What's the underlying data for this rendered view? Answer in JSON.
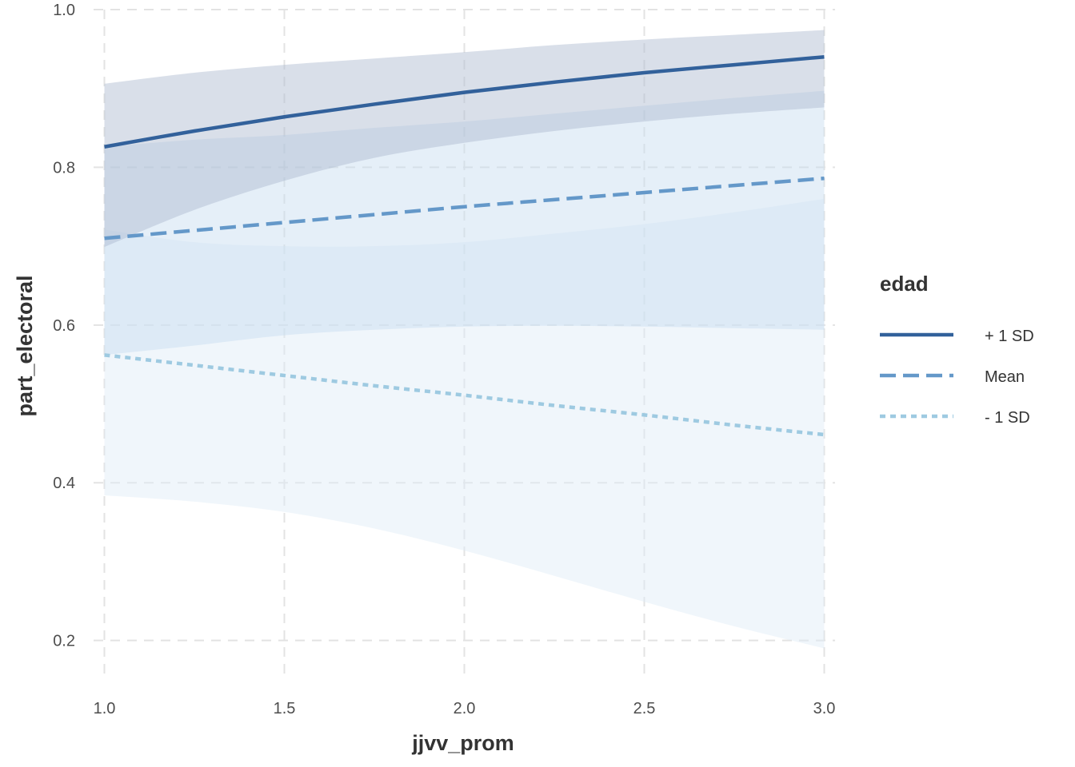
{
  "chart_data": {
    "type": "line",
    "title": "",
    "xlabel": "jjvv_prom",
    "ylabel": "part_electoral",
    "xlim": [
      0.97,
      3.03
    ],
    "ylim": [
      0.15,
      1.0
    ],
    "x_ticks": [
      "1.0",
      "1.5",
      "2.0",
      "2.5",
      "3.0"
    ],
    "y_ticks": [
      "0.2",
      "0.4",
      "0.6",
      "0.8",
      "1.0"
    ],
    "grid": true,
    "legend": {
      "title": "edad",
      "position": "right"
    },
    "x": [
      1.0,
      1.25,
      1.5,
      1.75,
      2.0,
      2.25,
      2.5,
      2.75,
      3.0
    ],
    "series": [
      {
        "name": "- 1 SD",
        "line_style": "dotted",
        "color": "#9ecae1",
        "fill": "#deebf7",
        "values": [
          0.562,
          0.549,
          0.536,
          0.523,
          0.511,
          0.498,
          0.486,
          0.473,
          0.461
        ],
        "lower": [
          0.384,
          0.376,
          0.363,
          0.342,
          0.314,
          0.282,
          0.249,
          0.218,
          0.19
        ],
        "upper": [
          0.721,
          0.705,
          0.7,
          0.7,
          0.705,
          0.716,
          0.728,
          0.743,
          0.76
        ]
      },
      {
        "name": "Mean",
        "line_style": "dashed",
        "color": "#6498c9",
        "fill": "#c6dbef",
        "values": [
          0.71,
          0.72,
          0.73,
          0.74,
          0.75,
          0.759,
          0.768,
          0.777,
          0.786
        ],
        "lower": [
          0.562,
          0.574,
          0.587,
          0.594,
          0.598,
          0.599,
          0.598,
          0.596,
          0.594
        ],
        "upper": [
          0.826,
          0.835,
          0.841,
          0.85,
          0.858,
          0.868,
          0.878,
          0.888,
          0.897
        ]
      },
      {
        "name": "+ 1 SD",
        "line_style": "solid",
        "color": "#32619b",
        "fill": "#aab9cf",
        "values": [
          0.826,
          0.846,
          0.864,
          0.88,
          0.895,
          0.908,
          0.92,
          0.93,
          0.94
        ],
        "lower": [
          0.699,
          0.746,
          0.783,
          0.812,
          0.831,
          0.846,
          0.858,
          0.868,
          0.876
        ],
        "upper": [
          0.906,
          0.92,
          0.93,
          0.938,
          0.946,
          0.955,
          0.962,
          0.968,
          0.974
        ]
      }
    ]
  }
}
